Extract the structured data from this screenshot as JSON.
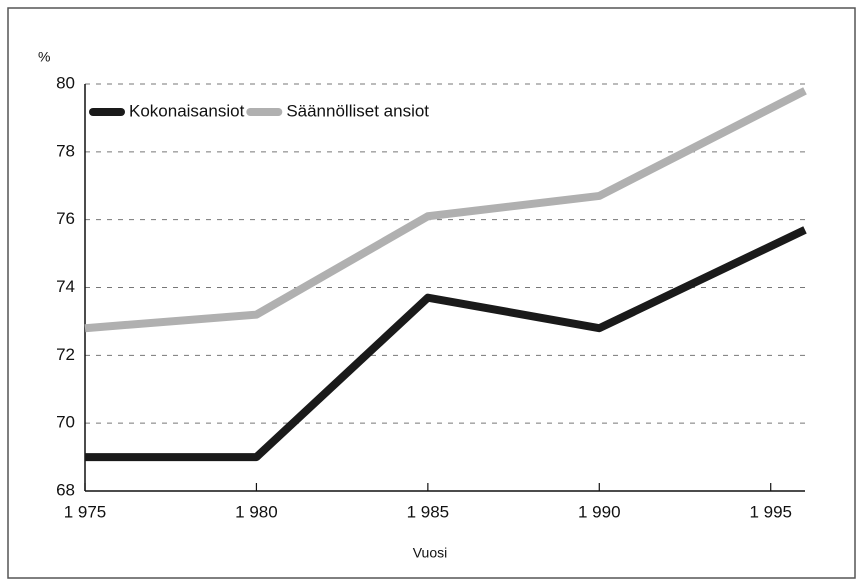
{
  "chart_data": {
    "type": "line",
    "y_label": "%",
    "x_label": "Vuosi",
    "x": [
      1975,
      1980,
      1985,
      1990,
      1996
    ],
    "series": [
      {
        "name": "Kokonaisansiot",
        "color": "#1a1a1a",
        "values": [
          69.0,
          69.0,
          73.7,
          72.8,
          75.7
        ]
      },
      {
        "name": "Säännölliset ansiot",
        "color": "#b0b0b0",
        "values": [
          72.8,
          73.2,
          76.1,
          76.7,
          79.8
        ]
      }
    ],
    "xlim": [
      1975,
      1996
    ],
    "xticks": [
      {
        "value": 1975,
        "label": "1 975"
      },
      {
        "value": 1980,
        "label": "1 980"
      },
      {
        "value": 1985,
        "label": "1 985"
      },
      {
        "value": 1990,
        "label": "1 990"
      },
      {
        "value": 1995,
        "label": "1 995"
      }
    ],
    "ylim": [
      68,
      80
    ],
    "yticks": [
      68,
      70,
      72,
      74,
      76,
      78,
      80
    ],
    "grid": true,
    "legend": "upper left"
  }
}
